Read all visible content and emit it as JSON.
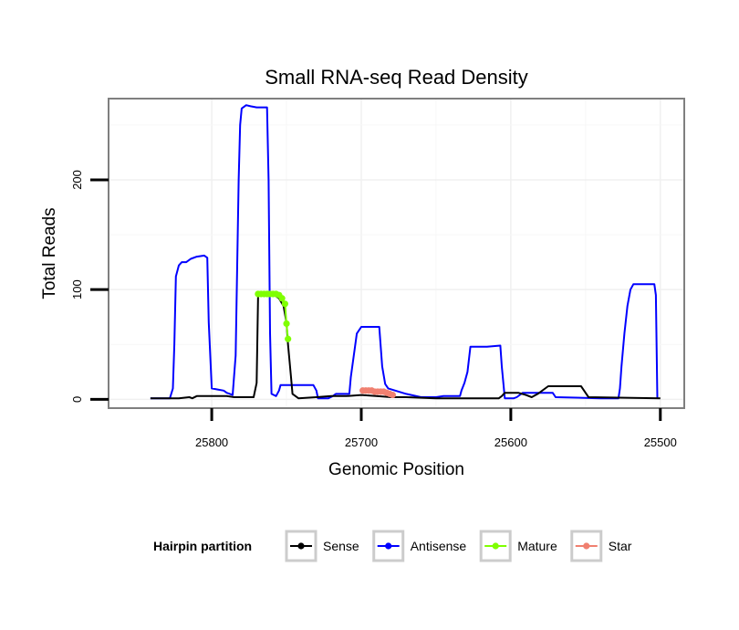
{
  "chart_data": {
    "type": "line",
    "title": "Small RNA-seq Read Density",
    "xlabel": "Genomic Position",
    "ylabel": "Total Reads",
    "xlim": [
      25869,
      25484
    ],
    "ylim": [
      -8,
      274
    ],
    "x_reversed": true,
    "x_ticks": [
      25800,
      25700,
      25600,
      25500
    ],
    "x_tick_labels": [
      "25800",
      "25700",
      "25600",
      "25500"
    ],
    "y_ticks": [
      0,
      100,
      200
    ],
    "y_tick_labels": [
      "0",
      "100",
      "200"
    ],
    "grid": true,
    "legend": {
      "title": "Hairpin partition",
      "position": "bottom",
      "entries": [
        {
          "name": "Sense",
          "color": "#000000"
        },
        {
          "name": "Antisense",
          "color": "#0000ff"
        },
        {
          "name": "Mature",
          "color": "#7fff00"
        },
        {
          "name": "Star",
          "color": "#f08070"
        }
      ]
    },
    "series": [
      {
        "name": "Antisense",
        "color": "#0000ff",
        "mode": "line",
        "points": [
          [
            25841,
            1
          ],
          [
            25828,
            1
          ],
          [
            25826,
            10
          ],
          [
            25825,
            50
          ],
          [
            25824,
            112
          ],
          [
            25822,
            122
          ],
          [
            25820,
            125
          ],
          [
            25817,
            125
          ],
          [
            25814,
            128
          ],
          [
            25810,
            130
          ],
          [
            25805,
            131
          ],
          [
            25803,
            129
          ],
          [
            25802,
            70
          ],
          [
            25800,
            10
          ],
          [
            25796,
            9
          ],
          [
            25792,
            8
          ],
          [
            25790,
            6
          ],
          [
            25786,
            4
          ],
          [
            25784,
            40
          ],
          [
            25782,
            200
          ],
          [
            25781,
            250
          ],
          [
            25780,
            265
          ],
          [
            25777,
            268
          ],
          [
            25774,
            267
          ],
          [
            25770,
            266
          ],
          [
            25763,
            266
          ],
          [
            25762,
            200
          ],
          [
            25761,
            60
          ],
          [
            25760,
            5
          ],
          [
            25757,
            3
          ],
          [
            25755,
            8
          ],
          [
            25754,
            13
          ],
          [
            25742,
            13
          ],
          [
            25732,
            13
          ],
          [
            25730,
            8
          ],
          [
            25729,
            1
          ],
          [
            25722,
            1
          ],
          [
            25719,
            3
          ],
          [
            25717,
            5
          ],
          [
            25708,
            5
          ],
          [
            25707,
            20
          ],
          [
            25705,
            40
          ],
          [
            25703,
            60
          ],
          [
            25700,
            66
          ],
          [
            25688,
            66
          ],
          [
            25686,
            30
          ],
          [
            25684,
            14
          ],
          [
            25682,
            10
          ],
          [
            25670,
            5
          ],
          [
            25660,
            2
          ],
          [
            25650,
            2
          ],
          [
            25645,
            3
          ],
          [
            25634,
            3
          ],
          [
            25633,
            8
          ],
          [
            25631,
            15
          ],
          [
            25629,
            25
          ],
          [
            25627,
            48
          ],
          [
            25616,
            48
          ],
          [
            25607,
            49
          ],
          [
            25606,
            30
          ],
          [
            25604,
            1
          ],
          [
            25598,
            1
          ],
          [
            25596,
            2
          ],
          [
            25592,
            6
          ],
          [
            25580,
            6
          ],
          [
            25572,
            6
          ],
          [
            25570,
            2
          ],
          [
            25540,
            1
          ],
          [
            25528,
            1
          ],
          [
            25527,
            10
          ],
          [
            25526,
            30
          ],
          [
            25524,
            60
          ],
          [
            25522,
            85
          ],
          [
            25520,
            100
          ],
          [
            25518,
            105
          ],
          [
            25504,
            105
          ],
          [
            25503,
            95
          ],
          [
            25502,
            1
          ]
        ]
      },
      {
        "name": "Sense",
        "color": "#000000",
        "mode": "line",
        "points": [
          [
            25841,
            1
          ],
          [
            25832,
            1
          ],
          [
            25822,
            1
          ],
          [
            25815,
            2
          ],
          [
            25813,
            1
          ],
          [
            25810,
            3
          ],
          [
            25805,
            3
          ],
          [
            25790,
            3
          ],
          [
            25785,
            2
          ],
          [
            25772,
            2
          ],
          [
            25770,
            15
          ],
          [
            25769,
            95
          ],
          [
            25758,
            95
          ],
          [
            25755,
            92
          ],
          [
            25752,
            85
          ],
          [
            25750,
            70
          ],
          [
            25749,
            50
          ],
          [
            25747,
            20
          ],
          [
            25746,
            5
          ],
          [
            25742,
            1
          ],
          [
            25730,
            2
          ],
          [
            25720,
            3
          ],
          [
            25710,
            3
          ],
          [
            25700,
            4
          ],
          [
            25690,
            3
          ],
          [
            25680,
            2
          ],
          [
            25670,
            2
          ],
          [
            25650,
            1
          ],
          [
            25620,
            1
          ],
          [
            25608,
            1
          ],
          [
            25606,
            3
          ],
          [
            25604,
            6
          ],
          [
            25595,
            6
          ],
          [
            25590,
            4
          ],
          [
            25586,
            2
          ],
          [
            25582,
            5
          ],
          [
            25575,
            12
          ],
          [
            25553,
            12
          ],
          [
            25550,
            6
          ],
          [
            25548,
            2
          ],
          [
            25500,
            1
          ]
        ]
      },
      {
        "name": "Mature",
        "color": "#7fff00",
        "mode": "line+points",
        "points": [
          [
            25769,
            96
          ],
          [
            25767,
            96
          ],
          [
            25765,
            96
          ],
          [
            25763,
            96
          ],
          [
            25761,
            96
          ],
          [
            25759,
            96
          ],
          [
            25757,
            96
          ],
          [
            25755,
            95
          ],
          [
            25753,
            92
          ],
          [
            25751,
            87
          ],
          [
            25750,
            69
          ],
          [
            25749,
            55
          ]
        ]
      },
      {
        "name": "Star",
        "color": "#f08070",
        "mode": "line+points",
        "points": [
          [
            25699,
            8
          ],
          [
            25697,
            8
          ],
          [
            25695,
            8
          ],
          [
            25693,
            8
          ],
          [
            25691,
            7
          ],
          [
            25689,
            7
          ],
          [
            25687,
            7
          ],
          [
            25685,
            7
          ],
          [
            25683,
            6
          ],
          [
            25681,
            5
          ],
          [
            25679,
            4
          ]
        ]
      }
    ]
  }
}
